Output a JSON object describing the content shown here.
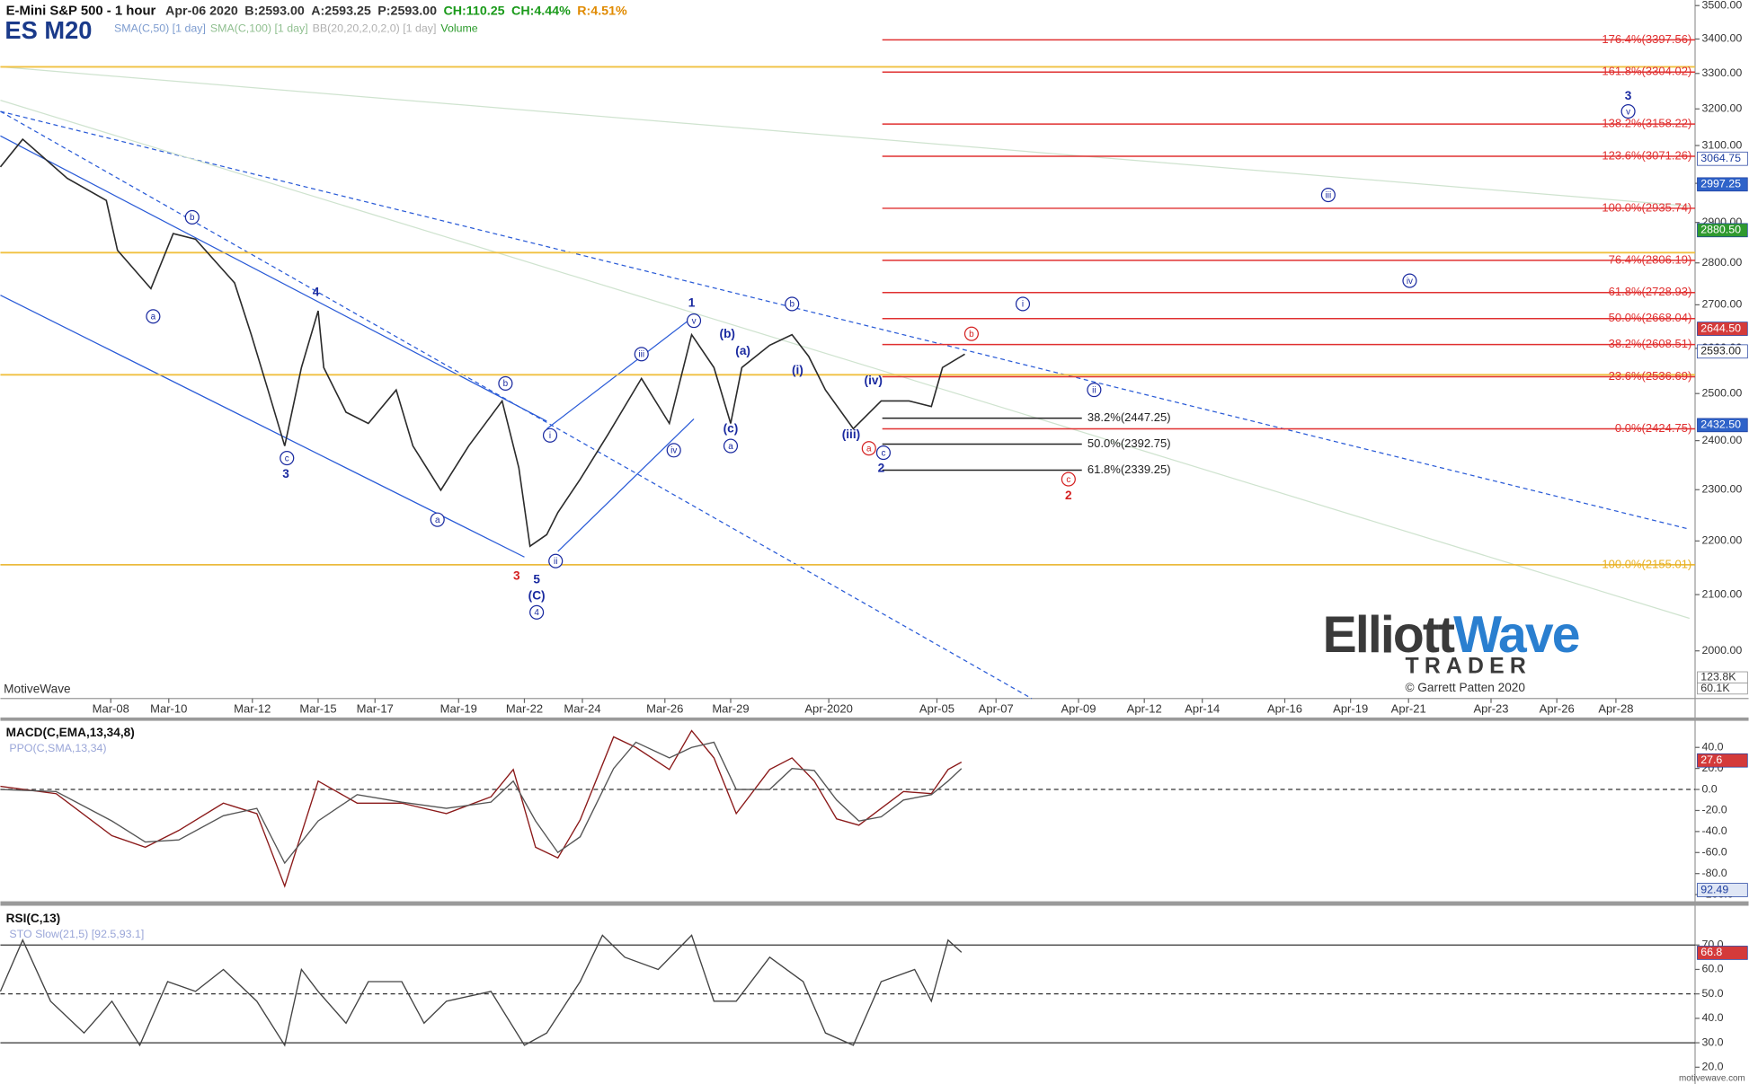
{
  "chart_data": [
    {
      "type": "line",
      "title": "E-Mini S&P 500 - 1 hour",
      "symbol": "ES M20",
      "quote": [
        {
          "text": "Apr-06 2020",
          "color": "#333333"
        },
        {
          "text": "B:2593.00",
          "color": "#333333"
        },
        {
          "text": "A:2593.25",
          "color": "#333333"
        },
        {
          "text": "P:2593.00",
          "color": "#333333"
        },
        {
          "text": "CH:110.25",
          "color": "#1a9a1a"
        },
        {
          "text": "CH:4.44%",
          "color": "#1a9a1a"
        },
        {
          "text": "R:4.51%",
          "color": "#e08a00"
        }
      ],
      "indicators": [
        {
          "text": "SMA(C,50) [1 day]",
          "color": "#7d9ccf"
        },
        {
          "text": "SMA(C,100) [1 day]",
          "color": "#8fbf8f"
        },
        {
          "text": "BB(20,20,2,0,2,0) [1 day]",
          "color": "#b0b0b0"
        },
        {
          "text": "Volume",
          "color": "#2a9a2a"
        }
      ],
      "watermark": "MotiveWave",
      "logo": {
        "word1": "Elliott",
        "word2": "Wave",
        "line2": "TRADER",
        "copyright": "© Garrett Patten 2020"
      },
      "volume_labels": [
        "123.8K",
        "60.1K"
      ],
      "log_scale": true,
      "grid": false,
      "color": "#2b2b2b",
      "x": [
        0,
        2,
        6,
        9.5,
        10.5,
        13.5,
        15.5,
        17.5,
        21,
        22.5,
        24,
        25.5,
        27,
        28.5,
        29,
        31,
        33,
        35.5,
        37,
        39.5,
        42,
        45,
        46.5,
        47.5,
        49,
        50,
        52,
        54.5,
        57.5,
        60,
        62,
        64,
        65.5,
        66.5,
        69,
        71,
        72.5,
        74,
        76.5,
        79,
        81.5,
        83.5,
        84.5,
        86.5
      ],
      "values": [
        3043,
        3117,
        3013,
        2956,
        2831,
        2738,
        2872,
        2858,
        2752,
        2631,
        2508,
        2389,
        2557,
        2686,
        2557,
        2460,
        2436,
        2508,
        2389,
        2299,
        2389,
        2484,
        2344,
        2190,
        2212,
        2255,
        2321,
        2413,
        2533,
        2436,
        2631,
        2557,
        2436,
        2557,
        2607,
        2631,
        2582,
        2508,
        2425,
        2484,
        2484,
        2472,
        2557,
        2587
      ],
      "xlim": [
        0,
        152
      ],
      "xticks": [
        {
          "value": 9.9,
          "label": "Mar-08"
        },
        {
          "value": 15.1,
          "label": "Mar-10"
        },
        {
          "value": 22.6,
          "label": "Mar-12"
        },
        {
          "value": 28.5,
          "label": "Mar-15"
        },
        {
          "value": 33.6,
          "label": "Mar-17"
        },
        {
          "value": 41.1,
          "label": "Mar-19"
        },
        {
          "value": 47,
          "label": "Mar-22"
        },
        {
          "value": 52.2,
          "label": "Mar-24"
        },
        {
          "value": 59.6,
          "label": "Mar-26"
        },
        {
          "value": 65.5,
          "label": "Mar-29"
        },
        {
          "value": 74.3,
          "label": "Apr-2020"
        },
        {
          "value": 84,
          "label": "Apr-05"
        },
        {
          "value": 89.3,
          "label": "Apr-07"
        },
        {
          "value": 96.7,
          "label": "Apr-09"
        },
        {
          "value": 102.6,
          "label": "Apr-12"
        },
        {
          "value": 107.8,
          "label": "Apr-14"
        },
        {
          "value": 115.2,
          "label": "Apr-16"
        },
        {
          "value": 121.1,
          "label": "Apr-19"
        },
        {
          "value": 126.3,
          "label": "Apr-21"
        },
        {
          "value": 133.7,
          "label": "Apr-23"
        },
        {
          "value": 139.6,
          "label": "Apr-26"
        },
        {
          "value": 144.9,
          "label": "Apr-28"
        }
      ],
      "ylim": [
        1919,
        3517
      ],
      "yticks": [
        {
          "value": 2000,
          "label": "2000.00"
        },
        {
          "value": 2100,
          "label": "2100.00"
        },
        {
          "value": 2200,
          "label": "2200.00"
        },
        {
          "value": 2300,
          "label": "2300.00"
        },
        {
          "value": 2400,
          "label": "2400.00"
        },
        {
          "value": 2500,
          "label": "2500.00"
        },
        {
          "value": 2600,
          "label": "2600.00"
        },
        {
          "value": 2700,
          "label": "2700.00"
        },
        {
          "value": 2800,
          "label": "2800.00"
        },
        {
          "value": 2900,
          "label": "2900.00"
        },
        {
          "value": 3000,
          "label": "3000.00"
        },
        {
          "value": 3100,
          "label": "3100.00"
        },
        {
          "value": 3200,
          "label": "3200.00"
        },
        {
          "value": 3300,
          "label": "3300.00"
        },
        {
          "value": 3400,
          "label": "3400.00"
        },
        {
          "value": 3500,
          "label": "3500.00"
        }
      ],
      "price_tags": [
        {
          "value": 3064.75,
          "label": "3064.75",
          "color": "#ffffff",
          "text_color": "#1f3f9f"
        },
        {
          "value": 2997.25,
          "label": "2997.25",
          "color": "#2f63c9",
          "text_color": "#ffffff"
        },
        {
          "value": 2880.5,
          "label": "2880.50",
          "color": "#2f9a2f",
          "text_color": "#ffffff"
        },
        {
          "value": 2644.5,
          "label": "2644.50",
          "color": "#d43a3a",
          "text_color": "#ffffff"
        },
        {
          "value": 2593,
          "label": "2593.00",
          "color": "#ffffff",
          "text_color": "#222222"
        },
        {
          "value": 2432.5,
          "label": "2432.50",
          "color": "#2f63c9",
          "text_color": "#ffffff"
        }
      ],
      "reference_lines": [
        {
          "value": 3319,
          "color": "#f0c040"
        },
        {
          "value": 2825,
          "color": "#f0c040"
        },
        {
          "value": 2541,
          "color": "#f0c040"
        }
      ],
      "fib_levels": [
        {
          "value": 3397.56,
          "label": "176.4%(3397.56)",
          "color": "#e03030",
          "from": 79.1,
          "to": 152
        },
        {
          "value": 3304.02,
          "label": "161.8%(3304.02)",
          "color": "#e03030",
          "from": 79.1,
          "to": 152
        },
        {
          "value": 3158.22,
          "label": "138.2%(3158.22)",
          "color": "#e03030",
          "from": 79.1,
          "to": 152
        },
        {
          "value": 3071.26,
          "label": "123.6%(3071.26)",
          "color": "#e03030",
          "from": 79.1,
          "to": 152
        },
        {
          "value": 2935.74,
          "label": "100.0%(2935.74)",
          "color": "#e03030",
          "from": 79.1,
          "to": 152
        },
        {
          "value": 2806.19,
          "label": "76.4%(2806.19)",
          "color": "#e03030",
          "from": 79.1,
          "to": 152
        },
        {
          "value": 2728.93,
          "label": "61.8%(2728.93)",
          "color": "#e03030",
          "from": 79.1,
          "to": 152
        },
        {
          "value": 2668.04,
          "label": "50.0%(2668.04)",
          "color": "#e03030",
          "from": 79.1,
          "to": 152
        },
        {
          "value": 2608.51,
          "label": "38.2%(2608.51)",
          "color": "#e03030",
          "from": 79.1,
          "to": 152
        },
        {
          "value": 2536.69,
          "label": "23.6%(2536.69)",
          "color": "#e03030",
          "from": 79.1,
          "to": 152
        },
        {
          "value": 2424.75,
          "label": "0.0%(2424.75)",
          "color": "#e03030",
          "from": 79.1,
          "to": 152
        },
        {
          "value": 2155.01,
          "label": "100.0%(2155.01)",
          "color": "#e8b020",
          "from": 0,
          "to": 152
        },
        {
          "value": 2447.25,
          "label": "38.2%(2447.25)",
          "color": "#222222",
          "from": 79.1,
          "to": 97
        },
        {
          "value": 2392.75,
          "label": "50.0%(2392.75)",
          "color": "#222222",
          "from": 79.1,
          "to": 97
        },
        {
          "value": 2339.25,
          "label": "61.8%(2339.25)",
          "color": "#222222",
          "from": 79.1,
          "to": 97
        }
      ],
      "annotations": [
        {
          "text": "4",
          "x": 28.3,
          "y": 2730,
          "color": "#1a2aa0",
          "circled": false
        },
        {
          "text": "3",
          "x": 25.6,
          "y": 2332,
          "color": "#1a2aa0",
          "circled": false
        },
        {
          "text": "b",
          "x": 17.2,
          "y": 2913,
          "color": "#1a2aa0",
          "circled": true
        },
        {
          "text": "a",
          "x": 13.7,
          "y": 2673,
          "color": "#1a2aa0",
          "circled": true
        },
        {
          "text": "c",
          "x": 25.7,
          "y": 2364,
          "color": "#1a2aa0",
          "circled": true
        },
        {
          "text": "b",
          "x": 45.3,
          "y": 2522,
          "color": "#1a2aa0",
          "circled": true
        },
        {
          "text": "a",
          "x": 39.2,
          "y": 2241,
          "color": "#1a2aa0",
          "circled": true
        },
        {
          "text": "3",
          "x": 46.3,
          "y": 2134,
          "color": "#d42020",
          "circled": false
        },
        {
          "text": "5",
          "x": 48.1,
          "y": 2128,
          "color": "#1a2aa0",
          "circled": false
        },
        {
          "text": "(C)",
          "x": 48.1,
          "y": 2098,
          "color": "#1a2aa0",
          "circled": false
        },
        {
          "text": "4",
          "x": 48.1,
          "y": 2068,
          "color": "#1a2aa0",
          "circled": true
        },
        {
          "text": "1",
          "x": 62,
          "y": 2705,
          "color": "#1a2aa0",
          "circled": false
        },
        {
          "text": "v",
          "x": 62.2,
          "y": 2663,
          "color": "#1a2aa0",
          "circled": true
        },
        {
          "text": "iii",
          "x": 57.5,
          "y": 2587,
          "color": "#1a2aa0",
          "circled": true
        },
        {
          "text": "iv",
          "x": 60.4,
          "y": 2380,
          "color": "#1a2aa0",
          "circled": true
        },
        {
          "text": "i",
          "x": 49.3,
          "y": 2411,
          "color": "#1a2aa0",
          "circled": true
        },
        {
          "text": "ii",
          "x": 49.8,
          "y": 2162,
          "color": "#1a2aa0",
          "circled": true
        },
        {
          "text": "(a)",
          "x": 66.6,
          "y": 2594,
          "color": "#1a2aa0",
          "circled": false
        },
        {
          "text": "(b)",
          "x": 65.2,
          "y": 2633,
          "color": "#1a2aa0",
          "circled": false
        },
        {
          "text": "(c)",
          "x": 65.5,
          "y": 2425,
          "color": "#1a2aa0",
          "circled": false
        },
        {
          "text": "a",
          "x": 65.5,
          "y": 2389,
          "color": "#1a2aa0",
          "circled": true
        },
        {
          "text": "b",
          "x": 71,
          "y": 2702,
          "color": "#1a2aa0",
          "circled": true
        },
        {
          "text": "(i)",
          "x": 71.5,
          "y": 2551,
          "color": "#1a2aa0",
          "circled": false
        },
        {
          "text": "(iii)",
          "x": 76.3,
          "y": 2413,
          "color": "#1a2aa0",
          "circled": false
        },
        {
          "text": "(iv)",
          "x": 78.3,
          "y": 2528,
          "color": "#1a2aa0",
          "circled": false
        },
        {
          "text": "a",
          "x": 77.9,
          "y": 2384,
          "color": "#d42020",
          "circled": true
        },
        {
          "text": "c",
          "x": 79.2,
          "y": 2375,
          "color": "#1a2aa0",
          "circled": true
        },
        {
          "text": "2",
          "x": 79,
          "y": 2343,
          "color": "#1a2aa0",
          "circled": false
        },
        {
          "text": "b",
          "x": 87.1,
          "y": 2633,
          "color": "#d42020",
          "circled": true
        },
        {
          "text": "c",
          "x": 95.8,
          "y": 2321,
          "color": "#d42020",
          "circled": true
        },
        {
          "text": "2",
          "x": 95.8,
          "y": 2288,
          "color": "#d42020",
          "circled": false
        },
        {
          "text": "i",
          "x": 91.7,
          "y": 2702,
          "color": "#1a2aa0",
          "circled": true
        },
        {
          "text": "ii",
          "x": 98.1,
          "y": 2508,
          "color": "#1a2aa0",
          "circled": true
        },
        {
          "text": "iii",
          "x": 119.1,
          "y": 2970,
          "color": "#1a2aa0",
          "circled": true
        },
        {
          "text": "iv",
          "x": 126.4,
          "y": 2757,
          "color": "#1a2aa0",
          "circled": true
        },
        {
          "text": "v",
          "x": 146,
          "y": 3193,
          "color": "#1a2aa0",
          "circled": true
        },
        {
          "text": "3",
          "x": 146,
          "y": 3236,
          "color": "#1a2aa0",
          "circled": false
        }
      ]
    },
    {
      "type": "line",
      "title": "MACD(C,EMA,13,34,8)",
      "subtitle": "PPO(C,SMA,13,34)",
      "log_scale": false,
      "grid": false,
      "xlim": [
        0,
        152
      ],
      "x": [
        0,
        5,
        10,
        13,
        16,
        20,
        23,
        25.5,
        28.5,
        32,
        36,
        40,
        44,
        46,
        48,
        50,
        52,
        55,
        57,
        60,
        62,
        64,
        66,
        69,
        71,
        73,
        75,
        77,
        79,
        81,
        83.5,
        85,
        86.2
      ],
      "series": [
        {
          "color": "#8b1a1a",
          "values": [
            3,
            -4,
            -44,
            -55,
            -39,
            -13,
            -23,
            -92,
            8,
            -13,
            -13,
            -23,
            -7,
            19,
            -55,
            -65,
            -29,
            50,
            40,
            19,
            56,
            30,
            -23,
            19,
            30,
            8,
            -28,
            -34,
            -18,
            -2,
            -4,
            19,
            26
          ]
        },
        {
          "color": "#555555",
          "values": [
            0,
            -2,
            -30,
            -50,
            -48,
            -25,
            -18,
            -70,
            -30,
            -5,
            -12,
            -18,
            -12,
            8,
            -30,
            -60,
            -45,
            20,
            45,
            30,
            40,
            45,
            0,
            0,
            20,
            18,
            -10,
            -30,
            -26,
            -10,
            -5,
            8,
            20
          ]
        }
      ],
      "ylim": [
        -105.3,
        65.3
      ],
      "yticks": [
        {
          "value": -100,
          "label": "-100.0"
        },
        {
          "value": -80,
          "label": "-80.0"
        },
        {
          "value": -60,
          "label": "-60.0"
        },
        {
          "value": -40,
          "label": "-40.0"
        },
        {
          "value": -20,
          "label": "-20.0"
        },
        {
          "value": 0,
          "label": "0.0"
        },
        {
          "value": 20,
          "label": "20.0"
        },
        {
          "value": 40,
          "label": "40.0"
        }
      ],
      "reference_lines": [
        {
          "value": 0,
          "color": "#333333",
          "dashed": true
        }
      ],
      "price_tags": [
        {
          "value": 27.6,
          "label": "27.6",
          "color": "#d43a3a",
          "text_color": "#ffffff"
        }
      ]
    },
    {
      "type": "line",
      "title": "RSI(C,13)",
      "subtitle": "STO Slow(21,5) [92.5,93.1]",
      "log_scale": false,
      "grid": false,
      "credit": "motivewave.com",
      "xlim": [
        0,
        152
      ],
      "x": [
        0,
        2,
        4.5,
        7.5,
        10,
        12.5,
        15,
        17.5,
        20,
        23,
        25.5,
        27,
        28.5,
        31,
        33,
        36,
        38,
        40,
        44,
        47,
        49,
        52,
        54,
        56,
        59,
        62,
        64,
        66,
        69,
        72,
        74,
        76.5,
        79,
        82,
        83.5,
        85,
        86.2
      ],
      "series": [
        {
          "color": "#444444",
          "values": [
            51,
            72,
            47,
            34,
            47,
            29,
            55,
            51,
            60,
            47,
            29,
            60,
            51,
            38,
            55,
            55,
            38,
            47,
            51,
            29,
            34,
            55,
            74,
            65,
            60,
            74,
            47,
            47,
            65,
            55,
            34,
            29,
            55,
            60,
            47,
            72,
            67
          ]
        }
      ],
      "ylim": [
        14.5,
        85.6
      ],
      "yticks": [
        {
          "value": 20,
          "label": "20.0"
        },
        {
          "value": 30,
          "label": "30.0"
        },
        {
          "value": 40,
          "label": "40.0"
        },
        {
          "value": 50,
          "label": "50.0"
        },
        {
          "value": 60,
          "label": "60.0"
        },
        {
          "value": 70,
          "label": "70.0"
        }
      ],
      "reference_lines": [
        {
          "value": 70,
          "color": "#333333",
          "dashed": false
        },
        {
          "value": 50,
          "color": "#333333",
          "dashed": true
        },
        {
          "value": 30,
          "color": "#333333",
          "dashed": false
        }
      ],
      "price_tags": [
        {
          "value": 92.49,
          "label": "92.49",
          "color": "#dfe6f5",
          "text_color": "#1f3f9f"
        },
        {
          "value": 66.8,
          "label": "66.8",
          "color": "#d43a3a",
          "text_color": "#ffffff"
        }
      ]
    }
  ]
}
